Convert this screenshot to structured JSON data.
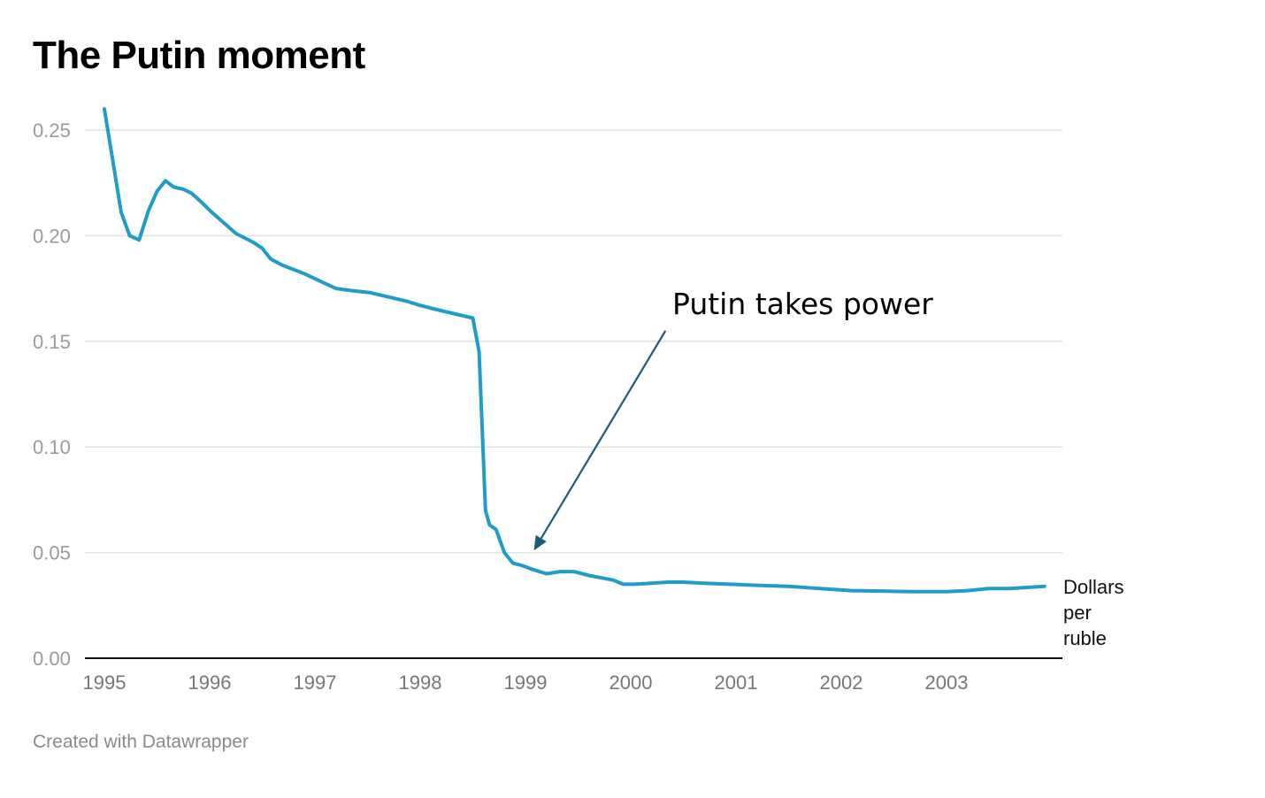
{
  "title": "The Putin moment",
  "footer": "Created with Datawrapper",
  "colors": {
    "line": "#1f9dc9",
    "arrow": "#1b5a7a",
    "grid": "#e2e2e2",
    "axis": "#111111"
  },
  "chart_data": {
    "type": "line",
    "title": "The Putin moment",
    "xlabel": "",
    "ylabel": "",
    "series_label": [
      "Dollars",
      "per",
      "ruble"
    ],
    "xlim": [
      1995,
      2003.95
    ],
    "ylim": [
      0,
      0.26
    ],
    "yticks": [
      0.0,
      0.05,
      0.1,
      0.15,
      0.2,
      0.25
    ],
    "ytick_labels": [
      "0.00",
      "0.05",
      "0.10",
      "0.15",
      "0.20",
      "0.25"
    ],
    "xticks": [
      1995,
      1996,
      1997,
      1998,
      1999,
      2000,
      2001,
      2002,
      2003
    ],
    "xtick_labels": [
      "1995",
      "1996",
      "1997",
      "1998",
      "1999",
      "2000",
      "2001",
      "2002",
      "2003"
    ],
    "grid": true,
    "legend": "none",
    "annotations": [
      {
        "text": "Putin takes power",
        "arrow_from": [
          2000.33,
          0.155
        ],
        "arrow_to": [
          1999.08,
          0.051
        ]
      }
    ],
    "series": [
      {
        "name": "Dollars per ruble",
        "x": [
          1995.0,
          1995.16,
          1995.24,
          1995.33,
          1995.42,
          1995.5,
          1995.58,
          1995.66,
          1995.75,
          1995.83,
          1995.92,
          1996.0,
          1996.16,
          1996.25,
          1996.41,
          1996.5,
          1996.58,
          1996.69,
          1996.9,
          1997.07,
          1997.2,
          1997.35,
          1997.53,
          1997.7,
          1997.87,
          1998.0,
          1998.16,
          1998.33,
          1998.5,
          1998.56,
          1998.62,
          1998.66,
          1998.72,
          1998.8,
          1998.88,
          1998.96,
          1999.07,
          1999.2,
          1999.33,
          1999.46,
          1999.54,
          1999.62,
          1999.73,
          1999.83,
          1999.93,
          2000.03,
          2000.2,
          2000.35,
          2000.5,
          2000.7,
          2000.95,
          2001.2,
          2001.5,
          2001.8,
          2002.1,
          2002.4,
          2002.7,
          2003.0,
          2003.2,
          2003.4,
          2003.6,
          2003.93
        ],
        "values": [
          0.26,
          0.211,
          0.2,
          0.198,
          0.212,
          0.221,
          0.226,
          0.223,
          0.222,
          0.22,
          0.216,
          0.212,
          0.205,
          0.201,
          0.197,
          0.194,
          0.189,
          0.186,
          0.182,
          0.178,
          0.175,
          0.174,
          0.173,
          0.171,
          0.169,
          0.167,
          0.165,
          0.163,
          0.161,
          0.145,
          0.07,
          0.063,
          0.061,
          0.05,
          0.045,
          0.044,
          0.042,
          0.04,
          0.041,
          0.041,
          0.04,
          0.039,
          0.038,
          0.037,
          0.035,
          0.035,
          0.0355,
          0.036,
          0.036,
          0.0355,
          0.035,
          0.0345,
          0.034,
          0.033,
          0.032,
          0.0318,
          0.0315,
          0.0315,
          0.032,
          0.033,
          0.033,
          0.034
        ]
      }
    ]
  }
}
